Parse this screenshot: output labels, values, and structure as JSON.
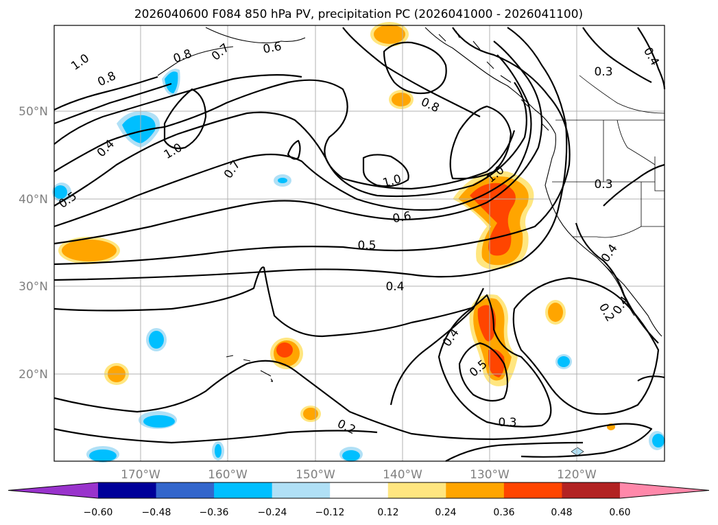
{
  "title": "2026040600 F084 850 hPa PV, precipitation PC (2026041000 - 2026041100)",
  "lat_labels": [
    "50°N",
    "40°N",
    "30°N",
    "20°N"
  ],
  "lon_labels": [
    "170°W",
    "160°W",
    "150°W",
    "140°W",
    "130°W",
    "120°W"
  ],
  "contour_labels": {
    "c1": "1.0",
    "c2": "0.8",
    "c3": "0.7",
    "c4": "0.6",
    "c5": "0.8",
    "c6": "0.4",
    "c7": "0.3",
    "c8": "1.0",
    "c9": "0.4",
    "c10": "0.5",
    "c11": "0.7",
    "c12": "1.0",
    "c13": "0.6",
    "c14": "0.5",
    "c15": "0.4",
    "c16": "1.0",
    "c17": "0.3",
    "c18": "0.4",
    "c19": "0.2",
    "c20": "0.4",
    "c21": "0.5",
    "c22": "0.3",
    "c23": "0.2",
    "c24": "0.8",
    "c25": "0.4"
  },
  "colorbar": {
    "ticks": [
      "−0.60",
      "−0.48",
      "−0.36",
      "−0.24",
      "−0.12",
      "0.12",
      "0.24",
      "0.36",
      "0.48",
      "0.60"
    ],
    "colors": [
      "#9933cc",
      "#000099",
      "#3366cc",
      "#00bfff",
      "#b0e0f6",
      "#ffffff",
      "#ffe680",
      "#ffa500",
      "#ff4500",
      "#b22222",
      "#ff88aa"
    ]
  },
  "shading_colors": {
    "light_blue": "#b0e0f6",
    "blue": "#00bfff",
    "light_yellow": "#ffe680",
    "orange": "#ffa500",
    "red_orange": "#ff4500",
    "dark_red": "#b22222"
  }
}
